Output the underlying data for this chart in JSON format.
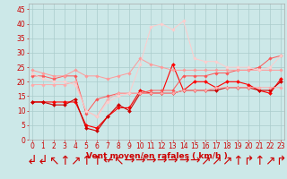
{
  "x": [
    0,
    1,
    2,
    3,
    4,
    5,
    6,
    7,
    8,
    9,
    10,
    11,
    12,
    13,
    14,
    15,
    16,
    17,
    18,
    19,
    20,
    21,
    22,
    23
  ],
  "series": [
    {
      "color": "#ff0000",
      "linewidth": 0.8,
      "markersize": 2.0,
      "values": [
        13,
        13,
        13,
        13,
        13,
        5,
        4,
        8,
        11,
        11,
        17,
        16,
        16,
        26,
        17,
        20,
        20,
        18,
        20,
        20,
        19,
        17,
        16,
        21
      ]
    },
    {
      "color": "#cc0000",
      "linewidth": 0.8,
      "markersize": 2.0,
      "values": [
        13,
        13,
        12,
        12,
        14,
        4,
        3,
        8,
        12,
        10,
        16,
        16,
        16,
        16,
        17,
        17,
        17,
        17,
        18,
        18,
        18,
        17,
        17,
        20
      ]
    },
    {
      "color": "#ff5555",
      "linewidth": 0.7,
      "markersize": 1.8,
      "values": [
        22,
        22,
        21,
        22,
        22,
        9,
        14,
        15,
        16,
        16,
        16,
        17,
        17,
        17,
        22,
        22,
        22,
        23,
        23,
        24,
        24,
        25,
        28,
        29
      ]
    },
    {
      "color": "#ff9999",
      "linewidth": 0.7,
      "markersize": 1.8,
      "values": [
        24,
        23,
        22,
        22,
        24,
        22,
        22,
        21,
        22,
        23,
        28,
        26,
        25,
        24,
        24,
        24,
        24,
        24,
        24,
        24,
        24,
        24,
        24,
        24
      ]
    },
    {
      "color": "#ffaaaa",
      "linewidth": 0.7,
      "markersize": 1.8,
      "values": [
        19,
        19,
        19,
        19,
        20,
        10,
        8,
        14,
        16,
        16,
        16,
        16,
        16,
        16,
        17,
        17,
        17,
        18,
        18,
        18,
        18,
        18,
        18,
        18
      ]
    },
    {
      "color": "#ffcccc",
      "linewidth": 0.7,
      "markersize": 1.8,
      "values": [
        23,
        21,
        20,
        20,
        19,
        10,
        8,
        13,
        15,
        16,
        26,
        39,
        40,
        38,
        41,
        28,
        27,
        27,
        25,
        25,
        25,
        24,
        25,
        29
      ]
    }
  ],
  "xlim": [
    -0.3,
    23.3
  ],
  "ylim": [
    0,
    47
  ],
  "yticks": [
    0,
    5,
    10,
    15,
    20,
    25,
    30,
    35,
    40,
    45
  ],
  "xticks": [
    0,
    1,
    2,
    3,
    4,
    5,
    6,
    7,
    8,
    9,
    10,
    11,
    12,
    13,
    14,
    15,
    16,
    17,
    18,
    19,
    20,
    21,
    22,
    23
  ],
  "xlabel": "Vent moyen/en rafales ( km/h )",
  "xlabel_color": "#cc0000",
  "background_color": "#cce8e8",
  "grid_color": "#aacccc",
  "tick_color": "#cc0000",
  "tick_fontsize": 5.5,
  "xlabel_fontsize": 6.5,
  "wind_arrows": [
    "↲",
    "↲",
    "↖",
    "↑",
    "↗",
    "↑",
    "↑",
    "↚",
    "↖",
    "→",
    "→",
    "→",
    "→",
    "→",
    "→",
    "→",
    "↗",
    "↗",
    "↗",
    "↑",
    "↱"
  ]
}
